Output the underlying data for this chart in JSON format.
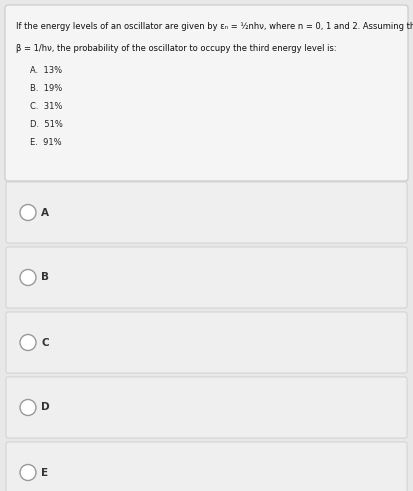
{
  "question_box_bg": "#f5f5f5",
  "question_line1": "If the energy levels of an oscillator are given by εₙ = ½nhν, where n = 0, 1 and 2. Assuming that",
  "question_line2": "β = 1/hν, the probability of the oscillator to occupy the third energy level is:",
  "options_text": [
    "A.  13%",
    "B.  19%",
    "C.  31%",
    "D.  51%",
    "E.  91%"
  ],
  "answer_labels": [
    "A",
    "B",
    "C",
    "D",
    "E"
  ],
  "overall_bg": "#e8e8e8",
  "answer_box_bg": "#efefef",
  "answer_box_border": "#c8c8c8",
  "question_box_border": "#c8c8c8",
  "circle_color": "#ffffff",
  "circle_edge": "#999999",
  "label_color": "#333333",
  "question_text_color": "#111111",
  "option_text_color": "#222222",
  "fig_width": 4.13,
  "fig_height": 4.91,
  "dpi": 100
}
